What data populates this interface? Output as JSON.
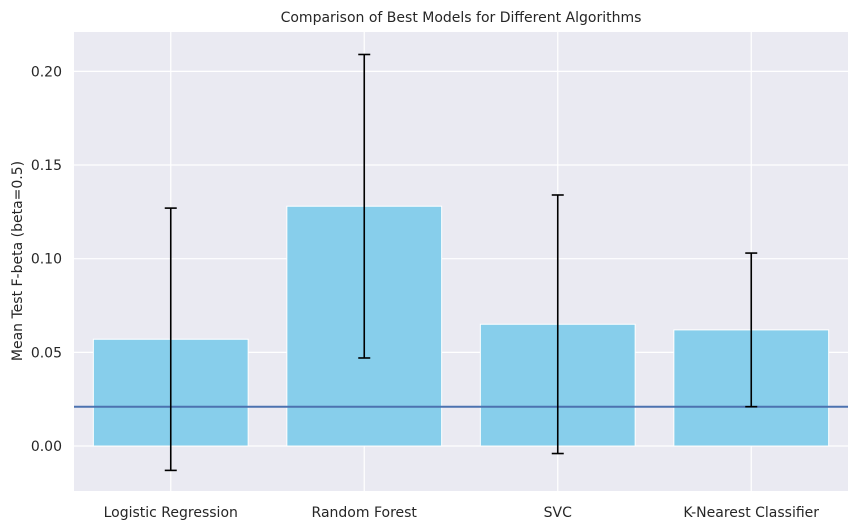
{
  "chart_data": {
    "type": "bar",
    "title": "Comparison of Best Models for Different Algorithms",
    "xlabel": "",
    "ylabel": "Mean Test F-beta (beta=0.5)",
    "categories": [
      "Logistic Regression",
      "Random Forest",
      "SVC",
      "K-Nearest Classifier"
    ],
    "values": [
      0.057,
      0.128,
      0.065,
      0.062
    ],
    "error": [
      0.07,
      0.081,
      0.069,
      0.041
    ],
    "reference_line": 0.021,
    "ylim": [
      -0.024,
      0.221
    ],
    "yticks": [
      0.0,
      0.05,
      0.1,
      0.15,
      0.2
    ],
    "ytick_labels": [
      "0.00",
      "0.05",
      "0.10",
      "0.15",
      "0.20"
    ],
    "grid": true,
    "bar_color": "#87CEEB",
    "error_color": "#000000",
    "reference_line_color": "#4C72B0",
    "background_color": "#EAEAF2",
    "grid_color": "#FFFFFF"
  }
}
